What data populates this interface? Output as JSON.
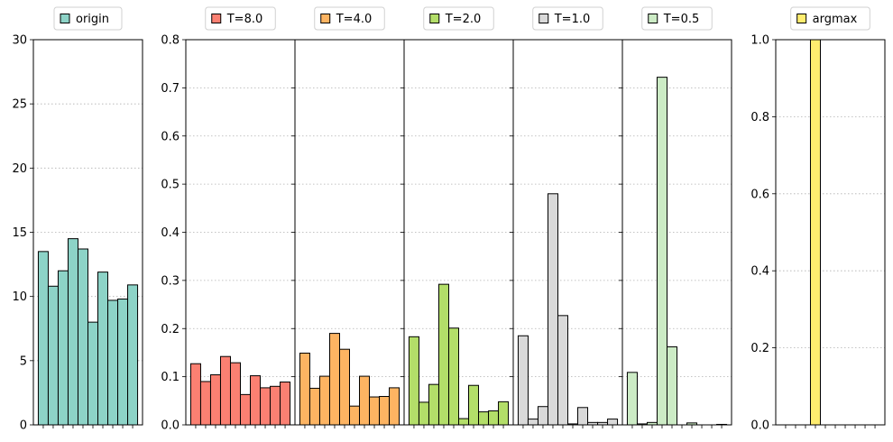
{
  "chart_data": [
    {
      "type": "bar",
      "legend": "origin",
      "color": "#8dd3c7",
      "ylim": [
        0,
        30
      ],
      "yticks": [
        0,
        5,
        10,
        15,
        20,
        25,
        30
      ],
      "values": [
        13.5,
        10.8,
        12.0,
        14.5,
        13.7,
        8.0,
        11.9,
        9.7,
        9.8,
        10.9
      ]
    },
    {
      "type": "bar",
      "legend": "T=8.0",
      "color": "#fb8072",
      "ylim": [
        0,
        0.8
      ],
      "yticks": [
        0.0,
        0.1,
        0.2,
        0.3,
        0.4,
        0.5,
        0.6,
        0.7,
        0.8
      ],
      "values": [
        0.127,
        0.09,
        0.104,
        0.142,
        0.129,
        0.063,
        0.102,
        0.077,
        0.08,
        0.089
      ]
    },
    {
      "type": "bar",
      "legend": "T=4.0",
      "color": "#fdb462",
      "ylim": [
        0,
        0.8
      ],
      "values": [
        0.149,
        0.076,
        0.101,
        0.19,
        0.157,
        0.039,
        0.101,
        0.058,
        0.059,
        0.077
      ]
    },
    {
      "type": "bar",
      "legend": "T=2.0",
      "color": "#b3de69",
      "ylim": [
        0,
        0.8
      ],
      "values": [
        0.183,
        0.047,
        0.084,
        0.292,
        0.201,
        0.013,
        0.082,
        0.027,
        0.029,
        0.048
      ]
    },
    {
      "type": "bar",
      "legend": "T=1.0",
      "color": "#d9d9d9",
      "ylim": [
        0,
        0.8
      ],
      "values": [
        0.185,
        0.012,
        0.038,
        0.48,
        0.227,
        0.002,
        0.036,
        0.005,
        0.005,
        0.012
      ]
    },
    {
      "type": "bar",
      "legend": "T=0.5",
      "color": "#ccebc5",
      "ylim": [
        0,
        0.8
      ],
      "values": [
        0.109,
        0.002,
        0.005,
        0.722,
        0.162,
        0.0,
        0.004,
        0.0,
        0.0,
        0.001
      ]
    },
    {
      "type": "bar",
      "legend": "argmax",
      "color": "#ffed6f",
      "ylim": [
        0,
        1.0
      ],
      "yticks": [
        0.0,
        0.2,
        0.4,
        0.6,
        0.8,
        1.0
      ],
      "values": [
        0,
        0,
        0,
        1,
        0,
        0,
        0,
        0,
        0,
        0
      ]
    }
  ]
}
